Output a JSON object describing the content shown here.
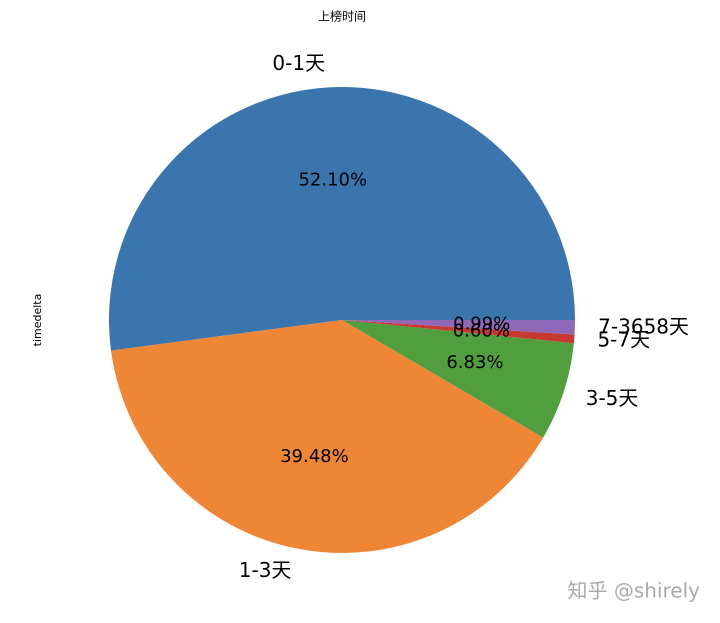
{
  "chart_data": {
    "type": "pie",
    "title": "上榜时间",
    "ylabel": "timedelta",
    "categories": [
      "0-1天",
      "1-3天",
      "3-5天",
      "5-7天",
      "7-3658天"
    ],
    "values": [
      52.1,
      39.48,
      6.83,
      0.6,
      0.99
    ],
    "value_labels": [
      "52.10%",
      "39.48%",
      "6.83%",
      "0.60%",
      "0.99%"
    ],
    "colors": [
      "#3a75ae",
      "#ef8636",
      "#519e3e",
      "#c53a32",
      "#8d69b8"
    ],
    "watermark": "知乎 @shirely"
  }
}
